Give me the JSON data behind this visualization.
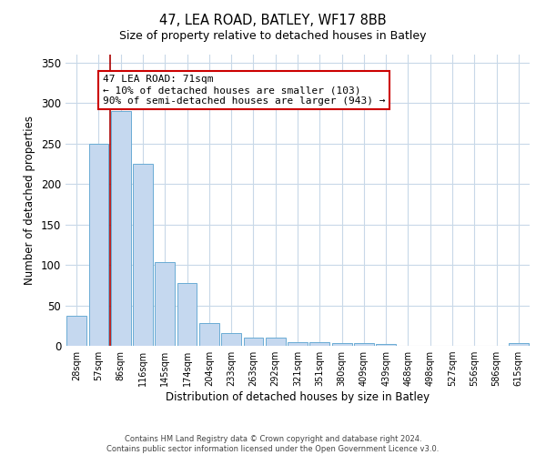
{
  "title": "47, LEA ROAD, BATLEY, WF17 8BB",
  "subtitle": "Size of property relative to detached houses in Batley",
  "xlabel": "Distribution of detached houses by size in Batley",
  "ylabel": "Number of detached properties",
  "bar_labels": [
    "28sqm",
    "57sqm",
    "86sqm",
    "116sqm",
    "145sqm",
    "174sqm",
    "204sqm",
    "233sqm",
    "263sqm",
    "292sqm",
    "321sqm",
    "351sqm",
    "380sqm",
    "409sqm",
    "439sqm",
    "468sqm",
    "498sqm",
    "527sqm",
    "556sqm",
    "586sqm",
    "615sqm"
  ],
  "bar_values": [
    37,
    250,
    290,
    225,
    103,
    78,
    28,
    16,
    10,
    10,
    5,
    4,
    3,
    3,
    2,
    0,
    0,
    0,
    0,
    0,
    3
  ],
  "bar_color": "#c5d8ef",
  "bar_edgecolor": "#6aacd4",
  "red_line_color": "#aa0000",
  "annotation_text": "47 LEA ROAD: 71sqm\n← 10% of detached houses are smaller (103)\n90% of semi-detached houses are larger (943) →",
  "annotation_bbox_edgecolor": "#cc0000",
  "annotation_bbox_facecolor": "#ffffff",
  "footer1": "Contains HM Land Registry data © Crown copyright and database right 2024.",
  "footer2": "Contains public sector information licensed under the Open Government Licence v3.0.",
  "ylim": [
    0,
    360
  ],
  "background_color": "#ffffff",
  "grid_color": "#c8d8e8"
}
